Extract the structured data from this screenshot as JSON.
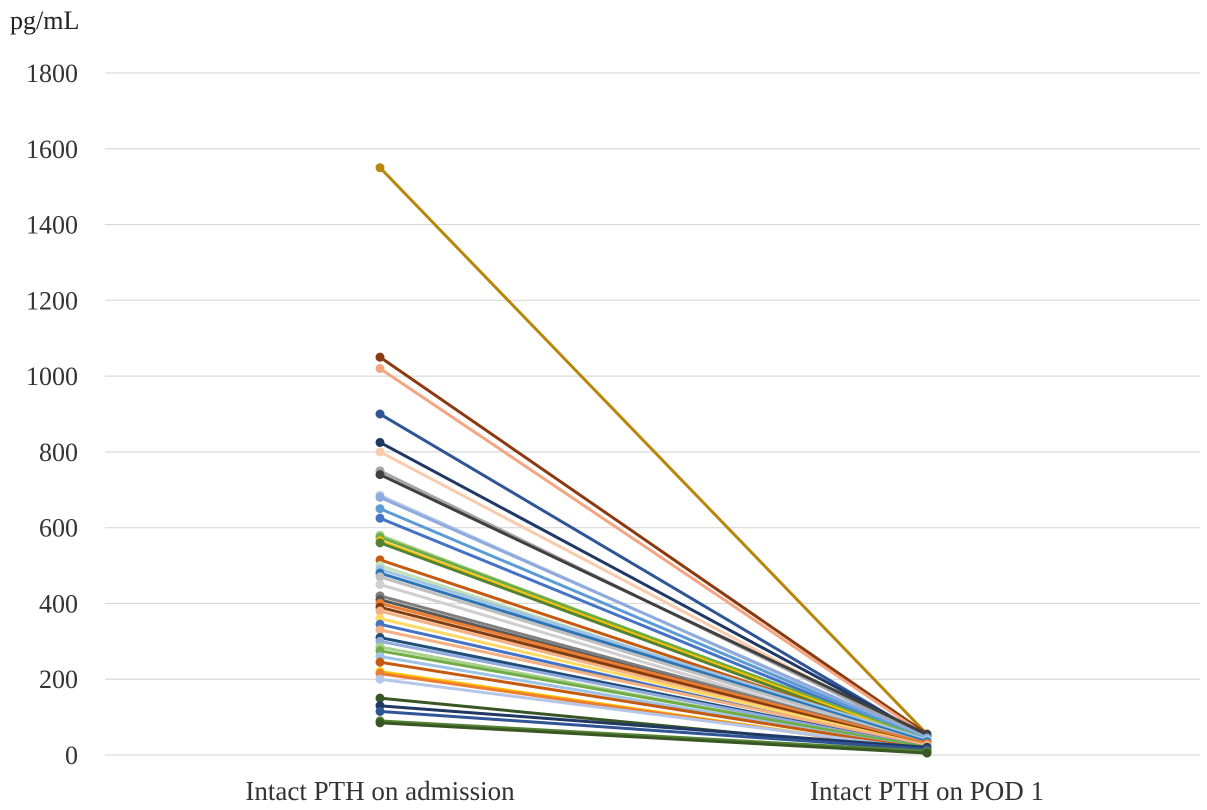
{
  "chart_data": {
    "type": "line",
    "unit_label": "pg/mL",
    "categories": [
      "Intact PTH on admission",
      "Intact PTH on POD 1"
    ],
    "ylim": [
      0,
      1800
    ],
    "y_ticks": [
      0,
      200,
      400,
      600,
      800,
      1000,
      1200,
      1400,
      1600,
      1800
    ],
    "grid": true,
    "legend": "none",
    "series": [
      {
        "values": [
          1550,
          55
        ],
        "color": "#B8860B"
      },
      {
        "values": [
          1050,
          55
        ],
        "color": "#8B3A0F"
      },
      {
        "values": [
          1020,
          50
        ],
        "color": "#F4A582"
      },
      {
        "values": [
          900,
          45
        ],
        "color": "#2F5597"
      },
      {
        "values": [
          825,
          50
        ],
        "color": "#1F3864"
      },
      {
        "values": [
          800,
          40
        ],
        "color": "#F8CBAD"
      },
      {
        "values": [
          750,
          45
        ],
        "color": "#A5A5A5"
      },
      {
        "values": [
          740,
          55
        ],
        "color": "#404040"
      },
      {
        "values": [
          685,
          40
        ],
        "color": "#B4C7E7"
      },
      {
        "values": [
          680,
          45
        ],
        "color": "#8FAADC"
      },
      {
        "values": [
          650,
          40
        ],
        "color": "#5B9BD5"
      },
      {
        "values": [
          625,
          35
        ],
        "color": "#4472C4"
      },
      {
        "values": [
          580,
          30
        ],
        "color": "#A9D18E"
      },
      {
        "values": [
          575,
          40
        ],
        "color": "#70AD47"
      },
      {
        "values": [
          565,
          35
        ],
        "color": "#FFC000"
      },
      {
        "values": [
          560,
          30
        ],
        "color": "#548235"
      },
      {
        "values": [
          515,
          35
        ],
        "color": "#C55A11"
      },
      {
        "values": [
          500,
          30
        ],
        "color": "#C5E0B4"
      },
      {
        "values": [
          490,
          40
        ],
        "color": "#9DC3E6"
      },
      {
        "values": [
          480,
          35
        ],
        "color": "#2E75B6"
      },
      {
        "values": [
          470,
          30
        ],
        "color": "#BFBFBF"
      },
      {
        "values": [
          450,
          25
        ],
        "color": "#D0CECE"
      },
      {
        "values": [
          420,
          30
        ],
        "color": "#7F7F7F"
      },
      {
        "values": [
          410,
          25
        ],
        "color": "#595959"
      },
      {
        "values": [
          400,
          30
        ],
        "color": "#ED7D31"
      },
      {
        "values": [
          390,
          25
        ],
        "color": "#843C0C"
      },
      {
        "values": [
          380,
          20
        ],
        "color": "#F4B183"
      },
      {
        "values": [
          360,
          25
        ],
        "color": "#FFD966"
      },
      {
        "values": [
          345,
          20
        ],
        "color": "#4472C4"
      },
      {
        "values": [
          330,
          25
        ],
        "color": "#F4B183"
      },
      {
        "values": [
          310,
          20
        ],
        "color": "#1F4E79"
      },
      {
        "values": [
          300,
          20
        ],
        "color": "#8FAADC"
      },
      {
        "values": [
          285,
          15
        ],
        "color": "#A9D18E"
      },
      {
        "values": [
          275,
          20
        ],
        "color": "#70AD47"
      },
      {
        "values": [
          260,
          15
        ],
        "color": "#9DC3E6"
      },
      {
        "values": [
          245,
          15
        ],
        "color": "#C55A11"
      },
      {
        "values": [
          220,
          10
        ],
        "color": "#FFC000"
      },
      {
        "values": [
          215,
          10
        ],
        "color": "#ED7D31"
      },
      {
        "values": [
          200,
          15
        ],
        "color": "#B4C7E7"
      },
      {
        "values": [
          150,
          10
        ],
        "color": "#375623"
      },
      {
        "values": [
          130,
          20
        ],
        "color": "#203864"
      },
      {
        "values": [
          115,
          15
        ],
        "color": "#2F5597"
      },
      {
        "values": [
          90,
          10
        ],
        "color": "#548235"
      },
      {
        "values": [
          85,
          5
        ],
        "color": "#385723"
      }
    ]
  }
}
